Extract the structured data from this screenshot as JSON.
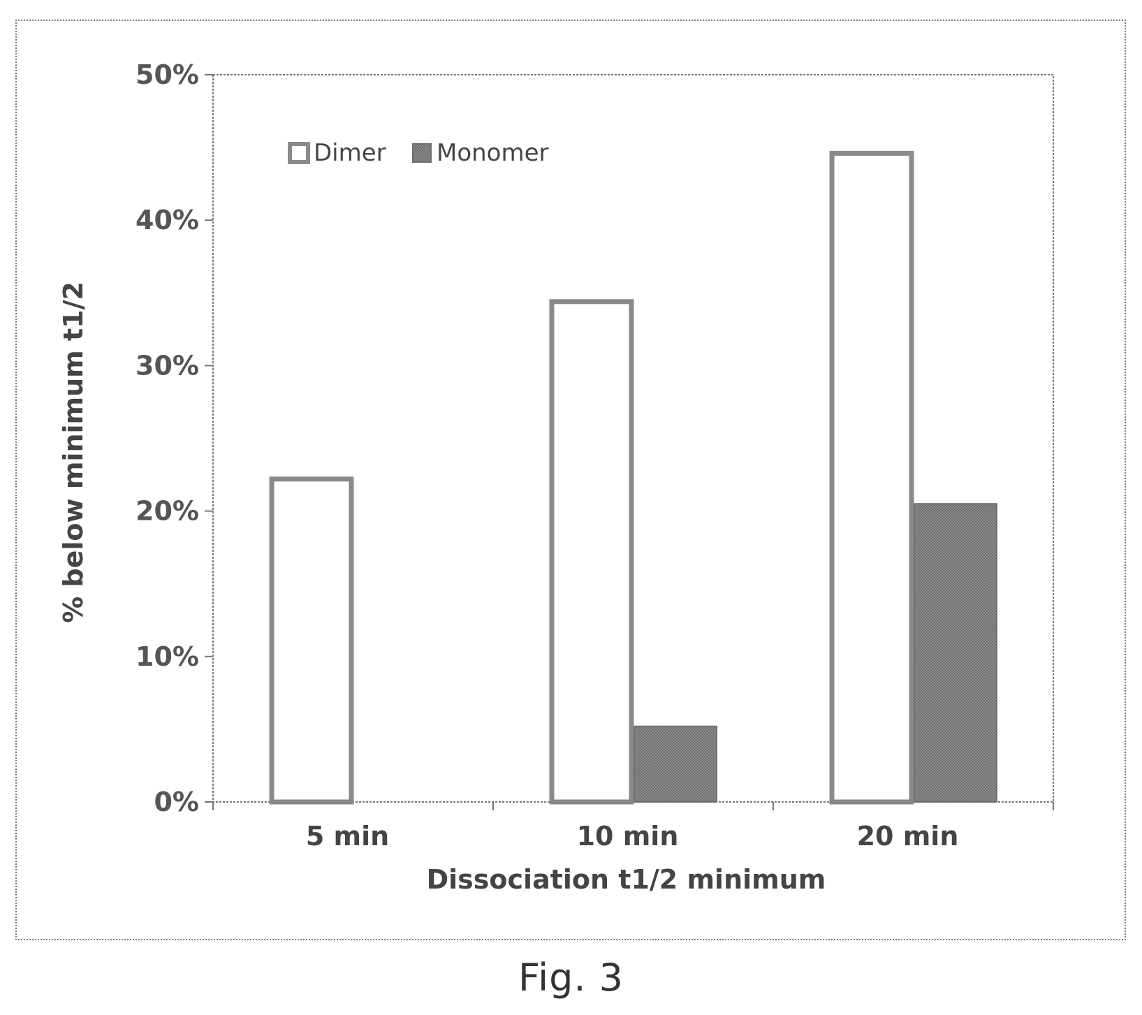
{
  "caption": "Fig. 3",
  "colors": {
    "dimer_fill": "#ffffff",
    "dimer_stroke": "#8a8a8a",
    "monomer_fill": "#6e6e6e",
    "axis": "#777777"
  },
  "chart_data": {
    "type": "bar",
    "categories": [
      "5 min",
      "10 min",
      "20 min"
    ],
    "series": [
      {
        "name": "Dimer",
        "values": [
          22.2,
          34.4,
          44.6
        ]
      },
      {
        "name": "Monomer",
        "values": [
          0,
          5.2,
          20.5
        ]
      }
    ],
    "xlabel": "Dissociation t1/2 minimum",
    "ylabel": "% below minimum t1/2",
    "ylim": [
      0,
      50
    ],
    "yticks": [
      0,
      10,
      20,
      30,
      40,
      50
    ],
    "ytick_labels": [
      "0%",
      "10%",
      "20%",
      "30%",
      "40%",
      "50%"
    ],
    "legend_position": "top-left",
    "grid": false
  }
}
